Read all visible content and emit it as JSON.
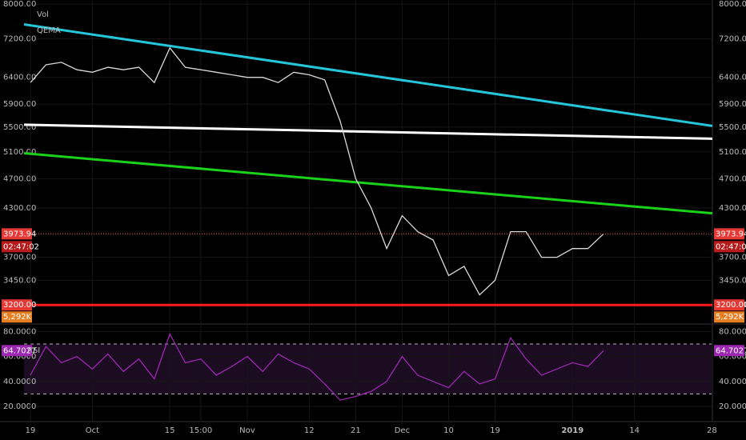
{
  "chart_data": [
    {
      "type": "line",
      "legend": [
        "Vol",
        "QEMA"
      ],
      "log_scale": true,
      "grid": true,
      "categories": [
        "19",
        null,
        null,
        null,
        "Oct",
        null,
        null,
        null,
        null,
        "15",
        null,
        "15:00",
        null,
        null,
        "Nov",
        null,
        null,
        null,
        "12",
        null,
        null,
        "21",
        null,
        null,
        "Dec",
        null,
        null,
        "10",
        null,
        null,
        "19",
        null,
        null,
        null,
        null,
        "2019",
        null,
        null,
        null,
        "14",
        null,
        null,
        null,
        null,
        "28"
      ],
      "series": [
        {
          "color": "#d9d9d9",
          "values": [
            6300,
            6650,
            6700,
            6550,
            6500,
            6600,
            6550,
            6600,
            6300,
            7000,
            6600,
            6550,
            6500,
            6450,
            6400,
            6400,
            6300,
            6500,
            6450,
            6350,
            5600,
            4700,
            4300,
            3800,
            4200,
            4000,
            3900,
            3500,
            3600,
            3300,
            3450,
            4000,
            4000,
            3700,
            3700,
            3800,
            3800,
            3973.94,
            null,
            null,
            null,
            null,
            null,
            null,
            null
          ]
        }
      ],
      "trendlines": [
        {
          "color": "#26c6da",
          "values": [
            7520,
            5520
          ]
        },
        {
          "color": "#ffffff",
          "values": [
            5540,
            5310
          ]
        },
        {
          "color": "#1bd21b",
          "values": [
            5080,
            4230
          ]
        }
      ],
      "hline": {
        "value": 3200,
        "color": "#ff1a1a"
      },
      "last_value": 3973.94,
      "countdown": "02:47:02",
      "volume_label": "5,292K",
      "ylim": [
        3020,
        8100
      ],
      "yticks": [
        {
          "value": 3200,
          "label": "3200.00"
        },
        {
          "value": 3450,
          "label": "3450.00"
        },
        {
          "value": 3700,
          "label": "3700.00"
        },
        {
          "value": 4300,
          "label": "4300.00"
        },
        {
          "value": 4700,
          "label": "4700.00"
        },
        {
          "value": 5100,
          "label": "5100.00"
        },
        {
          "value": 5500,
          "label": "5500.00"
        },
        {
          "value": 5900,
          "label": "5900.00"
        },
        {
          "value": 6400,
          "label": "6400.00"
        },
        {
          "value": 7200,
          "label": "7200.00"
        },
        {
          "value": 8000,
          "label": "8000.00"
        }
      ]
    },
    {
      "type": "line",
      "title": "RSI",
      "color": "#9c27b0",
      "values": [
        45,
        68,
        55,
        60,
        50,
        62,
        48,
        58,
        42,
        78,
        55,
        58,
        45,
        52,
        60,
        48,
        62,
        55,
        50,
        38,
        25,
        28,
        32,
        40,
        60,
        45,
        40,
        35,
        48,
        38,
        42,
        75,
        58,
        45,
        50,
        55,
        52,
        64.7027,
        null,
        null,
        null,
        null,
        null,
        null,
        null
      ],
      "bands": [
        30,
        70
      ],
      "last_value": 64.7027,
      "ylim": [
        7.8,
        85.4
      ],
      "yticks": [
        {
          "value": 20,
          "label": "20.0000"
        },
        {
          "value": 40,
          "label": "40.0000"
        },
        {
          "value": 60,
          "label": "60.0000"
        },
        {
          "value": 80,
          "label": "80.0000"
        }
      ]
    }
  ]
}
